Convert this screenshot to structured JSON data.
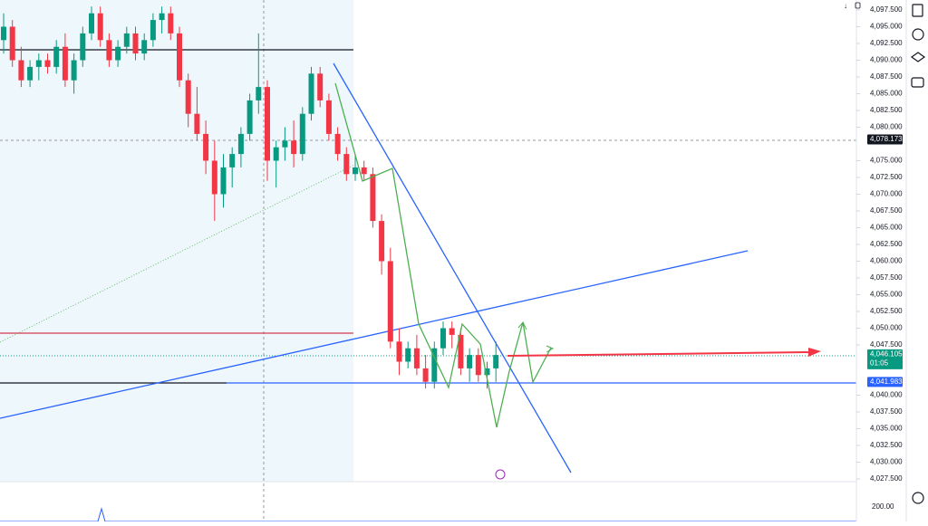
{
  "chart_data": {
    "type": "candlestick",
    "up_color": "#089981",
    "down_color": "#f23645",
    "open": [
      4093,
      4095,
      4090,
      4087,
      4089,
      4090,
      4089,
      4092,
      4087,
      4090,
      4094,
      4097,
      4093,
      4090,
      4092,
      4094,
      4091,
      4093,
      4096,
      4097,
      4094,
      4087,
      4082,
      4079,
      4075,
      4070,
      4074,
      4076,
      4079,
      4084,
      4086,
      4075,
      4077,
      4078,
      4076,
      4082,
      4088,
      4084,
      4079,
      4076,
      4073,
      4074,
      4073,
      4066,
      4060,
      4048,
      4045,
      4047,
      4044,
      4042,
      4047,
      4050,
      4049,
      4044,
      4046,
      4043,
      4044
    ],
    "high": [
      4097,
      4096,
      4092,
      4090,
      4091,
      4091,
      4093,
      4094,
      4091,
      4095,
      4098,
      4098,
      4094,
      4093,
      4095,
      4095,
      4094,
      4097,
      4098,
      4098,
      4095,
      4088,
      4086,
      4081,
      4078,
      4076,
      4077,
      4080,
      4085,
      4094,
      4087,
      4078,
      4080,
      4081,
      4083,
      4089,
      4089,
      4085,
      4080,
      4077,
      4076,
      4075,
      4074,
      4067,
      4062,
      4050,
      4048,
      4049,
      4046,
      4048,
      4051,
      4051,
      4050,
      4047,
      4047,
      4045,
      4048
    ],
    "low": [
      4091,
      4089,
      4086,
      4086,
      4087,
      4088,
      4088,
      4086,
      4085,
      4089,
      4093,
      4092,
      4089,
      4089,
      4091,
      4090,
      4090,
      4092,
      4094,
      4093,
      4086,
      4080,
      4078,
      4073,
      4066,
      4068,
      4071,
      4074,
      4078,
      4082,
      4072,
      4071,
      4075,
      4074,
      4075,
      4081,
      4083,
      4078,
      4075,
      4072,
      4072,
      4072,
      4065,
      4058,
      4047,
      4043,
      4044,
      4043,
      4041,
      4041,
      4046,
      4047,
      4043,
      4042,
      4042,
      4041,
      4042
    ],
    "close": [
      4095,
      4090,
      4087,
      4089,
      4090,
      4089,
      4092,
      4087,
      4090,
      4094,
      4097,
      4093,
      4090,
      4092,
      4094,
      4091,
      4093,
      4096,
      4097,
      4094,
      4087,
      4082,
      4079,
      4075,
      4070,
      4074,
      4076,
      4079,
      4084,
      4086,
      4075,
      4077,
      4078,
      4076,
      4082,
      4088,
      4084,
      4079,
      4076,
      4073,
      4074,
      4073,
      4066,
      4060,
      4048,
      4045,
      4047,
      4044,
      4042,
      4047,
      4050,
      4049,
      4044,
      4046,
      4043,
      4044,
      4046
    ],
    "ylim": [
      4027.5,
      4097.5
    ],
    "yticks": [
      {
        "value": 4097.5,
        "label": "4,097.500"
      },
      {
        "value": 4095,
        "label": "4,095.000"
      },
      {
        "value": 4092.5,
        "label": "4,092.500"
      },
      {
        "value": 4090,
        "label": "4,090.000"
      },
      {
        "value": 4087.5,
        "label": "4,087.500"
      },
      {
        "value": 4085,
        "label": "4,085.000"
      },
      {
        "value": 4082.5,
        "label": "4,082.500"
      },
      {
        "value": 4080,
        "label": "4,080.000"
      },
      {
        "value": 4075,
        "label": "4,075.000"
      },
      {
        "value": 4072.5,
        "label": "4,072.500"
      },
      {
        "value": 4070,
        "label": "4,070.000"
      },
      {
        "value": 4067.5,
        "label": "4,067.500"
      },
      {
        "value": 4065,
        "label": "4,065.000"
      },
      {
        "value": 4062.5,
        "label": "4,062.500"
      },
      {
        "value": 4060,
        "label": "4,060.000"
      },
      {
        "value": 4057.5,
        "label": "4,057.500"
      },
      {
        "value": 4055,
        "label": "4,055.000"
      },
      {
        "value": 4052.5,
        "label": "4,052.500"
      },
      {
        "value": 4050,
        "label": "4,050.000"
      },
      {
        "value": 4047.5,
        "label": "4,047.500"
      },
      {
        "value": 4040,
        "label": "4,040.000"
      },
      {
        "value": 4037.5,
        "label": "4,037.500"
      },
      {
        "value": 4035,
        "label": "4,035.000"
      },
      {
        "value": 4032.5,
        "label": "4,032.500"
      },
      {
        "value": 4030,
        "label": "4,030.000"
      },
      {
        "value": 4027.5,
        "label": "4,027.500"
      }
    ],
    "price_labels": [
      {
        "value": 4078.173,
        "label": "4,078.173",
        "color": "#131722"
      },
      {
        "value": 4046.105,
        "label": "4,046.105",
        "color": "#089981"
      },
      {
        "value": 4041.983,
        "label": "4,041.983",
        "color": "#2962ff"
      }
    ],
    "countdown": "01:05",
    "volume_label": "200.00"
  }
}
